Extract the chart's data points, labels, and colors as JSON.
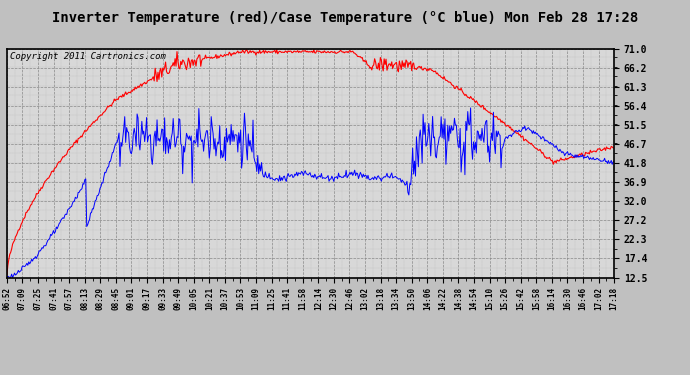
{
  "title": "Inverter Temperature (red)/Case Temperature (°C blue) Mon Feb 28 17:28",
  "copyright": "Copyright 2011 Cartronics.com",
  "yticks": [
    12.5,
    17.4,
    22.3,
    27.2,
    32.0,
    36.9,
    41.8,
    46.7,
    51.5,
    56.4,
    61.3,
    66.2,
    71.0
  ],
  "ylim": [
    12.5,
    71.0
  ],
  "background_color": "#c0c0c0",
  "plot_bg_color": "#d8d8d8",
  "red_color": "#ff0000",
  "blue_color": "#0000ff",
  "title_fontsize": 10,
  "copyright_fontsize": 6.5,
  "num_points": 640,
  "xtick_labels": [
    "06:52",
    "07:09",
    "07:25",
    "07:41",
    "07:57",
    "08:13",
    "08:29",
    "08:45",
    "09:01",
    "09:17",
    "09:33",
    "09:49",
    "10:05",
    "10:21",
    "10:37",
    "10:53",
    "11:09",
    "11:25",
    "11:41",
    "11:58",
    "12:14",
    "12:30",
    "12:46",
    "13:02",
    "13:18",
    "13:34",
    "13:50",
    "14:06",
    "14:22",
    "14:38",
    "14:54",
    "15:10",
    "15:26",
    "15:42",
    "15:58",
    "16:14",
    "16:30",
    "16:46",
    "17:02",
    "17:18"
  ]
}
